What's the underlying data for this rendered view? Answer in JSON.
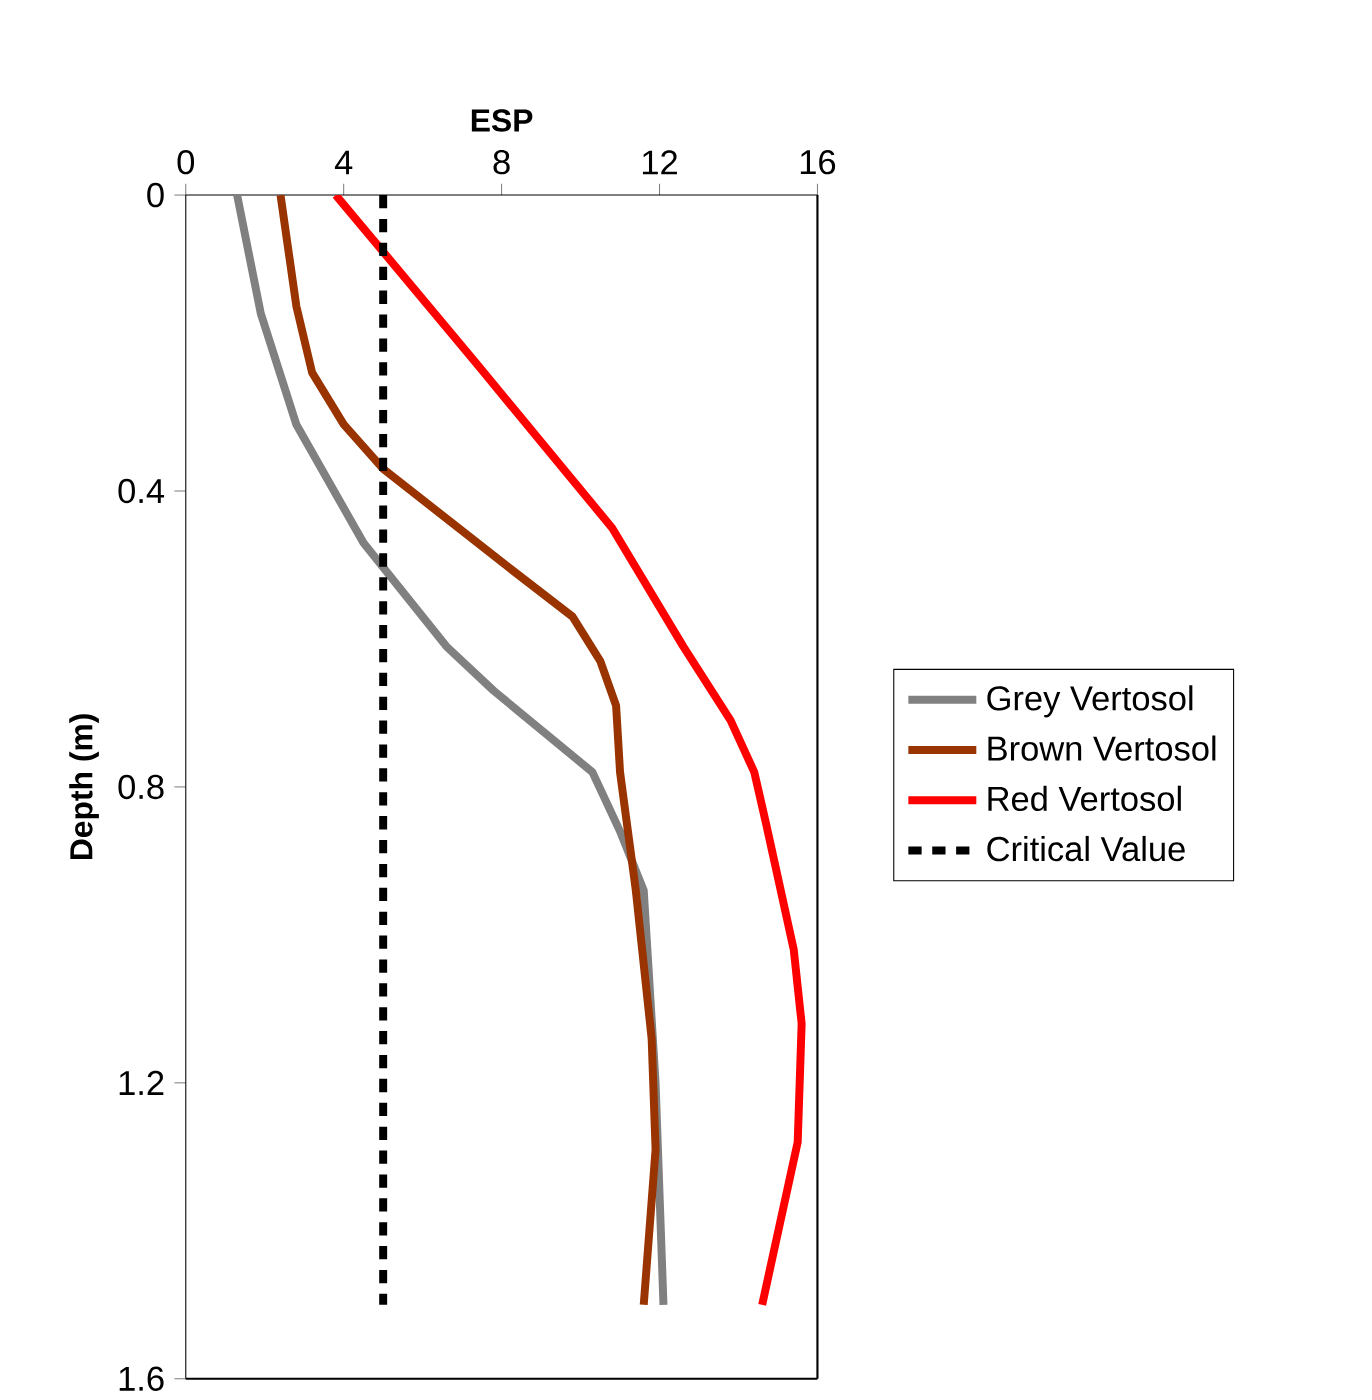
{
  "chart_data": {
    "type": "line",
    "xlabel": "ESP",
    "ylabel": "Depth (m)",
    "xlim": [
      0,
      16
    ],
    "xticks": [
      0,
      4,
      8,
      12,
      16
    ],
    "ylim": [
      1.6,
      0
    ],
    "yticks": [
      0,
      0.4,
      0.8,
      1.2,
      1.6
    ],
    "legend": "right",
    "marker": "none",
    "series": [
      {
        "name": "Grey Vertosol",
        "color": "#808080",
        "x": [
          1.3,
          1.9,
          2.8,
          4.5,
          6.6,
          7.8,
          10.3,
          11.0,
          11.6,
          11.9,
          12.1
        ],
        "values": [
          0,
          0.16,
          0.31,
          0.47,
          0.61,
          0.67,
          0.78,
          0.86,
          0.94,
          1.2,
          1.5
        ]
      },
      {
        "name": "Brown Vertosol",
        "color": "#993300",
        "x": [
          2.4,
          2.8,
          3.2,
          4.0,
          5.0,
          8.1,
          9.8,
          10.5,
          10.9,
          11.0,
          11.4,
          11.8,
          11.9,
          11.6
        ],
        "values": [
          0,
          0.15,
          0.24,
          0.31,
          0.37,
          0.5,
          0.57,
          0.63,
          0.69,
          0.78,
          0.94,
          1.14,
          1.29,
          1.5
        ]
      },
      {
        "name": "Red Vertosol",
        "color": "#ff0000",
        "x": [
          3.8,
          7.4,
          10.8,
          12.6,
          13.8,
          14.4,
          14.7,
          15.4,
          15.6,
          15.5,
          14.6
        ],
        "values": [
          0,
          0.23,
          0.45,
          0.61,
          0.71,
          0.78,
          0.85,
          1.02,
          1.12,
          1.28,
          1.5
        ]
      },
      {
        "name": "Critical Value",
        "color": "#000000",
        "line_style": "dashed",
        "x": [
          5,
          5
        ],
        "values": [
          0,
          1.5
        ]
      }
    ]
  }
}
